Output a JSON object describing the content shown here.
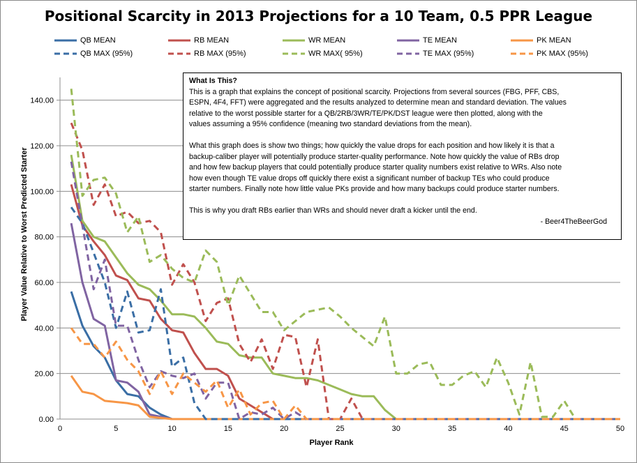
{
  "chart_data": {
    "type": "line",
    "title": "Positional Scarcity in 2013  Projections for a 10 Team, 0.5 PPR League",
    "xlabel": "Player Rank",
    "ylabel": "Player Value Relative to Worst Predicted Starter",
    "xlim": [
      0,
      50
    ],
    "ylim": [
      0,
      150
    ],
    "x_ticks": [
      "0",
      "5",
      "10",
      "15",
      "20",
      "25",
      "30",
      "35",
      "40",
      "45",
      "50"
    ],
    "y_ticks": [
      "0.00",
      "20.00",
      "40.00",
      "60.00",
      "80.00",
      "100.00",
      "120.00",
      "140.00"
    ],
    "grid": "horizontal",
    "legend_position": "top",
    "series": [
      {
        "name": "QB MEAN",
        "color": "#3a6ea5",
        "dash": false,
        "x": [
          1,
          2,
          3,
          4,
          5,
          6,
          7,
          8,
          9,
          10,
          11,
          12,
          13,
          14,
          15,
          16,
          17,
          18,
          19,
          20,
          21,
          22,
          23,
          24,
          25,
          26,
          27,
          28,
          29,
          30,
          31,
          32,
          33,
          34,
          35,
          36,
          37,
          38,
          39,
          40,
          41,
          42,
          43,
          44,
          45,
          46,
          47,
          48,
          49,
          50
        ],
        "y": [
          56,
          41,
          32,
          27,
          17,
          11,
          10,
          5,
          2,
          0,
          0,
          0,
          0,
          0,
          0,
          0,
          0,
          0,
          0,
          0,
          0,
          0,
          0,
          0,
          0,
          0,
          0,
          0,
          0,
          0,
          0,
          0,
          0,
          0,
          0,
          0,
          0,
          0,
          0,
          0,
          0,
          0,
          0,
          0,
          0,
          0,
          0,
          0,
          0,
          0
        ]
      },
      {
        "name": "QB MAX (95%)",
        "color": "#3a6ea5",
        "dash": true,
        "x": [
          1,
          2,
          3,
          4,
          5,
          6,
          7,
          8,
          9,
          10,
          11,
          12,
          13,
          14,
          15,
          16,
          17,
          18,
          19,
          20,
          21,
          22,
          23,
          24,
          25,
          26,
          27,
          28,
          29,
          30,
          31,
          32,
          33,
          34,
          35,
          36,
          37,
          38,
          39,
          40,
          41,
          42,
          43,
          44,
          45,
          46,
          47,
          48,
          49,
          50
        ],
        "y": [
          93,
          86,
          73,
          60,
          40,
          56,
          38,
          39,
          57,
          23,
          27,
          7,
          0,
          0,
          0,
          0,
          0,
          0,
          0,
          0,
          0,
          0,
          0,
          0,
          0,
          0,
          0,
          0,
          0,
          0,
          0,
          0,
          0,
          0,
          0,
          0,
          0,
          0,
          0,
          0,
          0,
          0,
          0,
          0,
          0,
          0,
          0,
          0,
          0,
          0
        ]
      },
      {
        "name": "RB MEAN",
        "color": "#c0504d",
        "dash": false,
        "x": [
          1,
          2,
          3,
          4,
          5,
          6,
          7,
          8,
          9,
          10,
          11,
          12,
          13,
          14,
          15,
          16,
          17,
          18,
          19,
          20,
          21,
          22,
          23,
          24,
          25,
          26,
          27,
          28,
          29,
          30,
          31,
          32,
          33,
          34,
          35,
          36,
          37,
          38,
          39,
          40,
          41,
          42,
          43,
          44,
          45,
          46,
          47,
          48,
          49,
          50
        ],
        "y": [
          103,
          85,
          78,
          72,
          63,
          61,
          53,
          52,
          44,
          39,
          38,
          29,
          22,
          22,
          19,
          9,
          6,
          3,
          0,
          0,
          0,
          0,
          0,
          0,
          0,
          0,
          0,
          0,
          0,
          0,
          0,
          0,
          0,
          0,
          0,
          0,
          0,
          0,
          0,
          0,
          0,
          0,
          0,
          0,
          0,
          0,
          0,
          0,
          0,
          0
        ]
      },
      {
        "name": "RB MAX (95%)",
        "color": "#c0504d",
        "dash": true,
        "x": [
          1,
          2,
          3,
          4,
          5,
          6,
          7,
          8,
          9,
          10,
          11,
          12,
          13,
          14,
          15,
          16,
          17,
          18,
          19,
          20,
          21,
          22,
          23,
          24,
          25,
          26,
          27,
          28,
          29,
          30,
          31,
          32,
          33,
          34,
          35,
          36,
          37,
          38,
          39,
          40,
          41,
          42,
          43,
          44,
          45,
          46,
          47,
          48,
          49,
          50
        ],
        "y": [
          130,
          118,
          94,
          103,
          89,
          91,
          86,
          87,
          82,
          59,
          68,
          60,
          43,
          51,
          53,
          33,
          25,
          35,
          22,
          37,
          36,
          14,
          35,
          0,
          0,
          9,
          0,
          0,
          0,
          0,
          0,
          0,
          0,
          0,
          0,
          0,
          0,
          0,
          0,
          0,
          0,
          0,
          0,
          0,
          0,
          0,
          0,
          0,
          0,
          0
        ]
      },
      {
        "name": "WR MEAN",
        "color": "#9bbb59",
        "dash": false,
        "x": [
          1,
          2,
          3,
          4,
          5,
          6,
          7,
          8,
          9,
          10,
          11,
          12,
          13,
          14,
          15,
          16,
          17,
          18,
          19,
          20,
          21,
          22,
          23,
          24,
          25,
          26,
          27,
          28,
          29,
          30,
          31,
          32,
          33,
          34,
          35,
          36,
          37,
          38,
          39,
          40,
          41,
          42,
          43,
          44,
          45,
          46,
          47,
          48,
          49,
          50
        ],
        "y": [
          116,
          87,
          80,
          78,
          71,
          64,
          59,
          57,
          52,
          46,
          46,
          45,
          40,
          34,
          33,
          28,
          27,
          27,
          20,
          19,
          18,
          18,
          17,
          15,
          13,
          11,
          10,
          10,
          4,
          0,
          0,
          0,
          0,
          0,
          0,
          0,
          0,
          0,
          0,
          0,
          0,
          0,
          0,
          0,
          0,
          0,
          0,
          0,
          0,
          0
        ]
      },
      {
        "name": "WR MAX( 95%)",
        "color": "#9bbb59",
        "dash": true,
        "x": [
          1,
          2,
          3,
          4,
          5,
          6,
          7,
          8,
          9,
          10,
          11,
          12,
          13,
          14,
          15,
          16,
          17,
          18,
          19,
          20,
          21,
          22,
          23,
          24,
          25,
          26,
          27,
          28,
          29,
          30,
          31,
          32,
          33,
          34,
          35,
          36,
          37,
          38,
          39,
          40,
          41,
          42,
          43,
          44,
          45,
          46,
          47,
          48,
          49,
          50
        ],
        "y": [
          145,
          98,
          105,
          106,
          99,
          82,
          89,
          69,
          72,
          66,
          62,
          60,
          74,
          69,
          50,
          63,
          55,
          47,
          47,
          39,
          43,
          47,
          48,
          49,
          45,
          40,
          36,
          32,
          45,
          20,
          20,
          24,
          25,
          15,
          15,
          19,
          21,
          14,
          27,
          16,
          2,
          25,
          1,
          1,
          8,
          0,
          0,
          0,
          0,
          0
        ]
      },
      {
        "name": "TE MEAN",
        "color": "#8064a2",
        "dash": false,
        "x": [
          1,
          2,
          3,
          4,
          5,
          6,
          7,
          8,
          9,
          10,
          11,
          12,
          13,
          14,
          15,
          16,
          17,
          18,
          19,
          20,
          21,
          22,
          23,
          24,
          25,
          26,
          27,
          28,
          29,
          30,
          31,
          32,
          33,
          34,
          35,
          36,
          37,
          38,
          39,
          40,
          41,
          42,
          43,
          44,
          45,
          46,
          47,
          48,
          49,
          50
        ],
        "y": [
          86,
          60,
          44,
          41,
          17,
          16,
          12,
          2,
          1,
          0,
          0,
          0,
          0,
          0,
          0,
          0,
          0,
          0,
          0,
          0,
          0,
          0,
          0,
          0,
          0,
          0,
          0,
          0,
          0,
          0,
          0,
          0,
          0,
          0,
          0,
          0,
          0,
          0,
          0,
          0,
          0,
          0,
          0,
          0,
          0,
          0,
          0,
          0,
          0,
          0
        ]
      },
      {
        "name": "TE MAX (95%)",
        "color": "#8064a2",
        "dash": true,
        "x": [
          1,
          2,
          3,
          4,
          5,
          6,
          7,
          8,
          9,
          10,
          11,
          12,
          13,
          14,
          15,
          16,
          17,
          18,
          19,
          20,
          21,
          22,
          23,
          24,
          25,
          26,
          27,
          28,
          29,
          30,
          31,
          32,
          33,
          34,
          35,
          36,
          37,
          38,
          39,
          40,
          41,
          42,
          43,
          44,
          45,
          46,
          47,
          48,
          49,
          50
        ],
        "y": [
          113,
          85,
          57,
          70,
          41,
          41,
          26,
          14,
          21,
          19,
          18,
          20,
          9,
          16,
          16,
          0,
          3,
          2,
          5,
          0,
          3,
          0,
          0,
          0,
          0,
          0,
          0,
          0,
          0,
          0,
          0,
          0,
          0,
          0,
          0,
          0,
          0,
          0,
          0,
          0,
          0,
          0,
          0,
          0,
          0,
          0,
          0,
          0,
          0,
          0
        ]
      },
      {
        "name": "PK MEAN",
        "color": "#f79646",
        "dash": false,
        "x": [
          1,
          2,
          3,
          4,
          5,
          6,
          7,
          8,
          9,
          10,
          11,
          12,
          13,
          14,
          15,
          16,
          17,
          18,
          19,
          20,
          21,
          22,
          23,
          24,
          25,
          26,
          27,
          28,
          29,
          30,
          31,
          32,
          33,
          34,
          35,
          36,
          37,
          38,
          39,
          40,
          41,
          42,
          43,
          44,
          45,
          46,
          47,
          48,
          49,
          50
        ],
        "y": [
          19,
          12,
          11,
          8,
          7.5,
          7,
          6,
          1,
          0.5,
          0,
          0,
          0,
          0,
          0,
          0,
          0,
          0,
          0,
          0,
          0,
          0,
          0,
          0,
          0,
          0,
          0,
          0,
          0,
          0,
          0,
          0,
          0,
          0,
          0,
          0,
          0,
          0,
          0,
          0,
          0,
          0,
          0,
          0,
          0,
          0,
          0,
          0,
          0,
          0,
          0
        ]
      },
      {
        "name": "PK MAX (95%)",
        "color": "#f79646",
        "dash": true,
        "x": [
          1,
          2,
          3,
          4,
          5,
          6,
          7,
          8,
          9,
          10,
          11,
          12,
          13,
          14,
          15,
          16,
          17,
          18,
          19,
          20,
          21,
          22,
          23,
          24,
          25,
          26,
          27,
          28,
          29,
          30,
          31,
          32,
          33,
          34,
          35,
          36,
          37,
          38,
          39,
          40,
          41,
          42,
          43,
          44,
          45,
          46,
          47,
          48,
          49,
          50
        ],
        "y": [
          40,
          33,
          33,
          27,
          34,
          26,
          21,
          11,
          21,
          11,
          20,
          16,
          12,
          17,
          5,
          13,
          2,
          7,
          8,
          0,
          6,
          0,
          0,
          0,
          0,
          0,
          0,
          0,
          0,
          0,
          0,
          0,
          0,
          0,
          0,
          0,
          0,
          0,
          0,
          0,
          0,
          0,
          0,
          0,
          0,
          0,
          0,
          0,
          0,
          0
        ]
      }
    ]
  },
  "note": {
    "title": "What Is This?",
    "line1": "This is a graph that explains the concept of positional scarcity. Projections from several sources (FBG, PFF, CBS,",
    "line2": "ESPN, 4F4, FFT) were aggregated and the results analyzed to determine mean and standard deviation. The values",
    "line3": "relative to the worst possible starter for a QB/2RB/3WR/TE/PK/DST  league were then plotted, along with  the",
    "line4": "values assuming  a 95% confidence (meaning two standard  deviations from the mean).",
    "line5": "What this graph does is show two things; how quickly the value drops for each position and how likely it is that a",
    "line6": "backup-caliber player will potentially produce starter-quality performance. Note how quickly the value of RBs drop",
    "line7": "and how few backup players that could potentially  produce starter quality numbers exist relative to WRs. Also note",
    "line8": "how even though TE value drops off quickly there exist a significant number of backup TEs who could produce",
    "line9": "starter numbers. Finally note how little value PKs provide and how many backups could produce starter numbers.",
    "line10": "This is why you draft RBs earlier than WRs and should never draft a kicker until the end.",
    "signature": "- Beer4TheBeerGod"
  }
}
